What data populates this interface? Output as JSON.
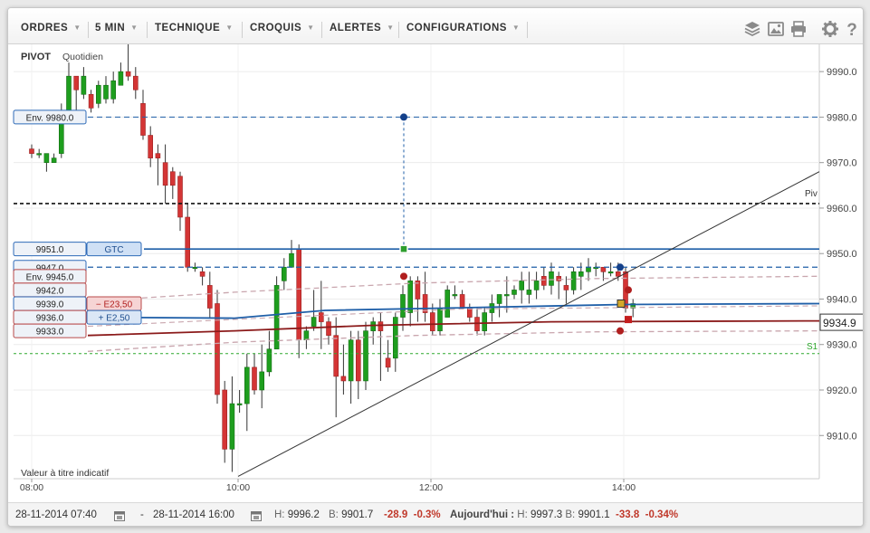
{
  "toolbar": {
    "menus": [
      {
        "label": "ORDRES"
      },
      {
        "label": "5 MIN"
      },
      {
        "label": "TECHNIQUE"
      },
      {
        "label": "CROQUIS"
      },
      {
        "label": "ALERTES"
      },
      {
        "label": "CONFIGURATIONS"
      }
    ],
    "icons": [
      "layers-icon",
      "image-icon",
      "print-icon",
      "gear-icon",
      "help-icon"
    ]
  },
  "chart": {
    "indicator_title": "PIVOT",
    "indicator_period": "Quotidien",
    "disclaimer": "Valeur à titre indicatif",
    "pivot_label": "Piv",
    "s1_label": "S1",
    "current_price_label": "9934.9",
    "colors": {
      "up": "#1e9e1e",
      "down": "#d43535",
      "order_blue": "#1f5fa8",
      "ma_red": "#8b1a1a",
      "envelope": "#c9a6ae",
      "pivot": "#111111",
      "s1": "#2ea82e"
    },
    "order_tags": [
      {
        "price_text": "Env. 9980.0",
        "price": 9980.0
      },
      {
        "price_text": "9951.0",
        "badge": "GTC",
        "price": 9951.0
      },
      {
        "price_text": "9947.0",
        "price": 9947.0
      },
      {
        "price_text": "Env. 9945.0",
        "price": 9945.0
      },
      {
        "price_text": "9942.0",
        "price": 9942.0
      },
      {
        "price_text": "9939.0",
        "badge": "− E23,50",
        "price": 9939.0
      },
      {
        "price_text": "9936.0",
        "badge": "+ E2,50",
        "price": 9936.0
      },
      {
        "price_text": "9933.0",
        "price": 9933.0
      }
    ]
  },
  "chart_data": {
    "type": "candlestick",
    "yticks": [
      9910.0,
      9920.0,
      9930.0,
      9940.0,
      9950.0,
      9960.0,
      9970.0,
      9980.0,
      9990.0
    ],
    "ytick_labels": [
      "9910.0",
      "9920.0",
      "9930.0",
      "9940.0",
      "9950.0",
      "9960.0",
      "9970.0",
      "9980.0",
      "9990.0"
    ],
    "xtick_labels": [
      "08:00",
      "10:00",
      "12:00",
      "14:00"
    ],
    "ylim": [
      9900.5,
      9996
    ],
    "pivot": 9961.0,
    "s1": 9928.0,
    "current_price": 9934.9,
    "candles": [
      [
        9973,
        9972,
        9974,
        9971
      ],
      [
        9972,
        9972,
        9973,
        9971
      ],
      [
        9970,
        9972,
        9972,
        9968
      ],
      [
        9970,
        9971,
        9972,
        9970
      ],
      [
        9972,
        9981,
        9983,
        9971
      ],
      [
        9981,
        9989,
        9992,
        9980
      ],
      [
        9989,
        9986,
        9989,
        9981
      ],
      [
        9985,
        9989,
        9991,
        9984
      ],
      [
        9985,
        9982,
        9986,
        9981
      ],
      [
        9983,
        9987,
        9988,
        9982
      ],
      [
        9984,
        9987,
        9989,
        9983
      ],
      [
        9984,
        9988,
        9990,
        9983
      ],
      [
        9987,
        9990,
        9992,
        9987
      ],
      [
        9990,
        9989,
        9996,
        9988
      ],
      [
        9989,
        9986,
        9991,
        9984
      ],
      [
        9983,
        9976,
        9986,
        9975
      ],
      [
        9976,
        9971,
        9978,
        9969
      ],
      [
        9972,
        9971,
        9974,
        9965
      ],
      [
        9970,
        9965,
        9974,
        9961
      ],
      [
        9968,
        9965,
        9969,
        9962
      ],
      [
        9967,
        9958,
        9968,
        9955
      ],
      [
        9958,
        9947,
        9961,
        9946
      ],
      [
        9947,
        9947,
        9948,
        9946
      ],
      [
        9946,
        9945,
        9947,
        9943
      ],
      [
        9943,
        9938,
        9946,
        9936
      ],
      [
        9939,
        9919,
        9942,
        9917
      ],
      [
        9920,
        9907,
        9922,
        9904
      ],
      [
        9907,
        9917,
        9923,
        9902
      ],
      [
        9917,
        9917,
        9920,
        9915
      ],
      [
        9917,
        9925,
        9928,
        9911
      ],
      [
        9925,
        9920,
        9928,
        9919
      ],
      [
        9920,
        9924,
        9930,
        9916
      ],
      [
        9924,
        9929,
        9933,
        9923
      ],
      [
        9929,
        9943,
        9945,
        9930
      ],
      [
        9944,
        9947,
        9949,
        9942
      ],
      [
        9947,
        9950,
        9953,
        9949
      ],
      [
        9951,
        9931,
        9952,
        9927
      ],
      [
        9931,
        9933,
        9934,
        9929
      ],
      [
        9934,
        9936,
        9942,
        9933
      ],
      [
        9937,
        9935,
        9944,
        9929
      ],
      [
        9935,
        9932,
        9936,
        9930
      ],
      [
        9932,
        9923,
        9936,
        9914
      ],
      [
        9923,
        9922,
        9930,
        9919
      ],
      [
        9922,
        9931,
        9933,
        9917
      ],
      [
        9931,
        9922,
        9933,
        9918
      ],
      [
        9922,
        9933,
        9935,
        9920
      ],
      [
        9933,
        9935,
        9936,
        9930
      ],
      [
        9935,
        9933,
        9937,
        9922
      ],
      [
        9927,
        9925,
        9931,
        9924
      ],
      [
        9927,
        9936,
        9937,
        9924
      ],
      [
        9936,
        9941,
        9943,
        9933
      ],
      [
        9937,
        9944,
        9945,
        9934
      ],
      [
        9944,
        9940,
        9945,
        9935
      ],
      [
        9941,
        9937,
        9946,
        9935
      ],
      [
        9937,
        9933,
        9939,
        9932
      ],
      [
        9933,
        9938,
        9940,
        9932
      ],
      [
        9936,
        9942,
        9943,
        9936
      ],
      [
        9941,
        9941,
        9943,
        9940
      ],
      [
        9941,
        9938,
        9942,
        9938
      ],
      [
        9938,
        9936,
        9939,
        9935
      ],
      [
        9936,
        9933,
        9938,
        9932
      ],
      [
        9933,
        9937,
        9938,
        9932
      ],
      [
        9937,
        9939,
        9941,
        9935
      ],
      [
        9939,
        9941,
        9941,
        9936
      ],
      [
        9941,
        9941,
        9945,
        9937
      ],
      [
        9941,
        9942,
        9943,
        9940
      ],
      [
        9942,
        9944,
        9946,
        9939
      ],
      [
        9941,
        9942,
        9946,
        9939
      ],
      [
        9942,
        9944,
        9946,
        9940
      ],
      [
        9945,
        9943,
        9947,
        9942
      ],
      [
        9943,
        9946,
        9948,
        9941
      ],
      [
        9945,
        9944,
        9946,
        9940
      ],
      [
        9943,
        9942,
        9945,
        9939
      ],
      [
        9942,
        9946,
        9947,
        9941
      ],
      [
        9945,
        9946,
        9948,
        9942
      ],
      [
        9946,
        9947,
        9949,
        9944
      ],
      [
        9947,
        9947,
        9948,
        9945
      ],
      [
        9947,
        9946,
        9947,
        9944
      ],
      [
        9946,
        9946,
        9948,
        9945
      ],
      [
        9946,
        9945,
        9948,
        9944
      ],
      [
        9946,
        9938,
        9947,
        9937
      ],
      [
        9938,
        9939,
        9940,
        9936
      ]
    ]
  },
  "status": {
    "date_from": "28-11-2014 07:40",
    "date_sep": "-",
    "date_to": "28-11-2014 16:00",
    "high_label": "H:",
    "high": "9996.2",
    "low_label": "B:",
    "low": "9901.7",
    "change": "-28.9",
    "change_pct": "-0.3%",
    "today_label": "Aujourd'hui :",
    "today_high": "9997.3",
    "today_low": "9901.1",
    "today_change": "-33.8",
    "today_change_pct": "-0.34%"
  }
}
